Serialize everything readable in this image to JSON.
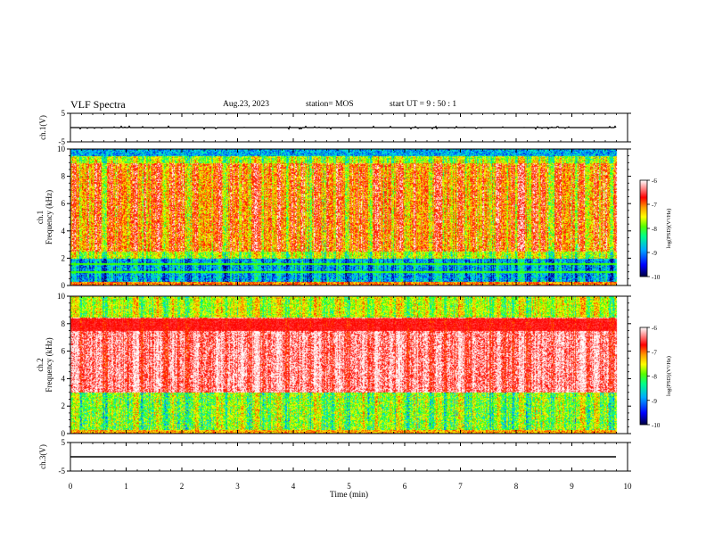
{
  "header": {
    "title": "VLF Spectra",
    "date": "Aug.23, 2023",
    "station": "station= MOS",
    "start": "start UT =  9 : 50 : 1"
  },
  "colors": {
    "colormap": [
      "#00003c",
      "#0000cc",
      "#0066ff",
      "#00ccff",
      "#00ff99",
      "#33ff00",
      "#ccff00",
      "#ffff00",
      "#ff9900",
      "#ff3300",
      "#ff0000",
      "#ffb0b0",
      "#ffffff"
    ]
  },
  "chart_data": [
    {
      "type": "line",
      "name": "ch1-waveform",
      "ylabel": "ch.1(V)",
      "ylim": [
        -5,
        5
      ],
      "yticks": [
        "5",
        "-5"
      ],
      "level": 0
    },
    {
      "type": "heatmap",
      "name": "ch1-spectrogram",
      "ylabel_line1": "ch.1",
      "ylabel_line2": "Frequency (kHz)",
      "ylim": [
        0,
        10
      ],
      "yticks": [
        "0",
        "2",
        "4",
        "6",
        "8",
        "10"
      ],
      "colorbar": {
        "label": "log(PSD)(V²/Hz)",
        "ticks": [
          "-6",
          "-7",
          "-8",
          "-9",
          "-10"
        ],
        "range": [
          -10,
          -6
        ]
      },
      "intense_band_khz": [
        2.5,
        9.0
      ],
      "quiet_band_khz": [
        0.3,
        2.0
      ]
    },
    {
      "type": "heatmap",
      "name": "ch2-spectrogram",
      "ylabel_line1": "ch.2",
      "ylabel_line2": "Frequency (kHz)",
      "ylim": [
        0,
        10
      ],
      "yticks": [
        "0",
        "2",
        "4",
        "6",
        "8",
        "10"
      ],
      "colorbar": {
        "label": "log(PSD)(V²/Hz)",
        "ticks": [
          "-6",
          "-7",
          "-8",
          "-9",
          "-10"
        ],
        "range": [
          -10,
          -6
        ]
      },
      "intense_band_khz": [
        3.0,
        8.5
      ]
    },
    {
      "type": "line",
      "name": "ch3-waveform",
      "ylabel": "ch.3(V)",
      "ylim": [
        -5,
        5
      ],
      "yticks": [
        "5",
        "-5"
      ],
      "level": 0
    }
  ],
  "xaxis": {
    "label": "Time (min)",
    "range": [
      0,
      10
    ],
    "ticks": [
      "0",
      "1",
      "2",
      "3",
      "4",
      "5",
      "6",
      "7",
      "8",
      "9",
      "10"
    ],
    "data_end": 9.8
  }
}
